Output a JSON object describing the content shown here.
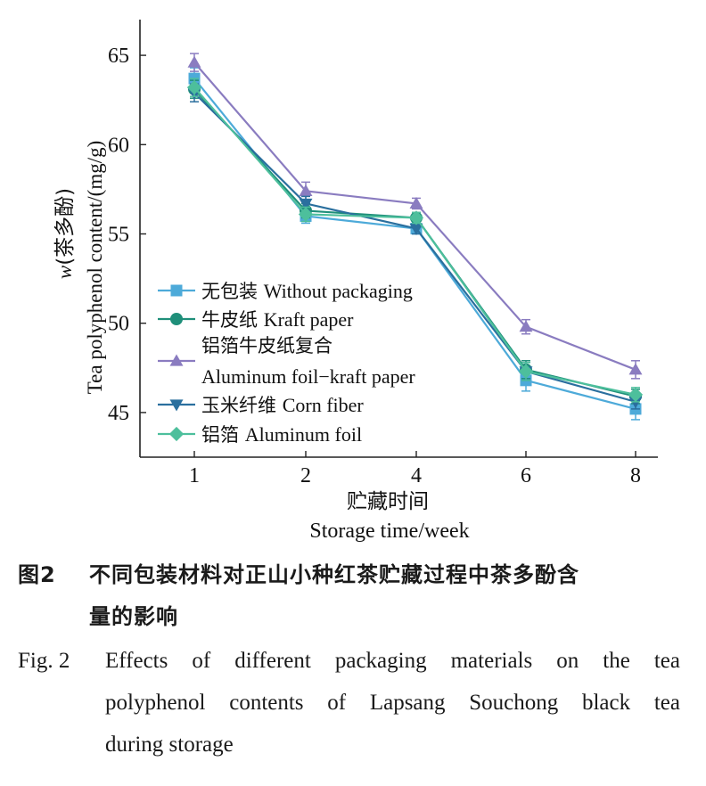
{
  "chart_data": {
    "type": "line",
    "xlabel_zh": "贮藏时间",
    "xlabel_en": "Storage time/week",
    "ylabel_en": "Tea polyphenol content/(mg/g)",
    "ylabel_zh_prefix": "w",
    "ylabel_zh": "(茶多酚)",
    "x": [
      "1",
      "2",
      "4",
      "6",
      "8"
    ],
    "ylim": [
      42.5,
      67
    ],
    "yticks": [
      "45",
      "50",
      "55",
      "60",
      "65"
    ],
    "series": [
      {
        "name_zh": "无包装",
        "name_en": "Without packaging",
        "marker": "square",
        "color": "#4daad9",
        "values": [
          63.7,
          56.0,
          55.3,
          46.8,
          45.2
        ],
        "errors": [
          0.6,
          0.4,
          0.3,
          0.6,
          0.6
        ]
      },
      {
        "name_zh": "牛皮纸",
        "name_en": "Kraft paper",
        "marker": "circle",
        "color": "#1f8f7a",
        "values": [
          63.1,
          56.3,
          55.9,
          47.4,
          45.9
        ],
        "errors": [
          0.5,
          0.4,
          0.3,
          0.5,
          0.4
        ]
      },
      {
        "name_zh": "铝箔牛皮纸复合",
        "name_en": "Aluminum foil−kraft paper",
        "marker": "triangle-up",
        "color": "#8a7cc0",
        "values": [
          64.6,
          57.4,
          56.7,
          49.8,
          47.4
        ],
        "errors": [
          0.5,
          0.5,
          0.3,
          0.4,
          0.5
        ]
      },
      {
        "name_zh": "玉米纤维",
        "name_en": "Corn fiber",
        "marker": "triangle-down",
        "color": "#2a6f9e",
        "values": [
          62.9,
          56.7,
          55.3,
          47.3,
          45.6
        ],
        "errors": [
          0.5,
          0.4,
          0.3,
          0.5,
          0.4
        ]
      },
      {
        "name_zh": "铝箔",
        "name_en": "Aluminum foil",
        "marker": "diamond",
        "color": "#4dbf9c",
        "values": [
          63.2,
          56.1,
          55.9,
          47.3,
          46.0
        ],
        "errors": [
          0.5,
          0.4,
          0.3,
          0.5,
          0.4
        ]
      }
    ]
  },
  "caption": {
    "zh_label": "图2",
    "zh_text_line1": "不同包装材料对正山小种红茶贮藏过程中茶多酚含",
    "zh_text_line2": "量的影响",
    "en_label": "Fig. 2",
    "en_line1": "Effects of different packaging materials on the tea",
    "en_line2": "polyphenol contents of Lapsang Souchong black tea",
    "en_line3": "during storage"
  }
}
